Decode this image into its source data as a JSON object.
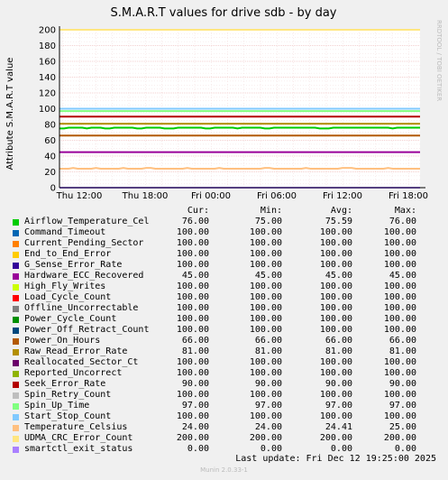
{
  "chart_data": {
    "type": "line",
    "title": "S.M.A.R.T values for drive sdb - by day",
    "ylabel": "Attribute S.M.A.R.T value",
    "watermark": "RRDTOOL / TOBI OETIKER",
    "ylim": [
      0,
      200
    ],
    "yticks": [
      0,
      20,
      40,
      60,
      80,
      100,
      120,
      140,
      160,
      180,
      200
    ],
    "xticks": [
      "Thu 12:00",
      "Thu 18:00",
      "Fri 00:00",
      "Fri 06:00",
      "Fri 12:00",
      "Fri 18:00"
    ],
    "grid": true,
    "series": [
      {
        "name": "Airflow_Temperature_Cel",
        "color": "#00cc00",
        "values": [
          75,
          75,
          76,
          76,
          76,
          76,
          75,
          76,
          76,
          76,
          75,
          75,
          76,
          76,
          76,
          76,
          76,
          75,
          75,
          76,
          76,
          76,
          76,
          75,
          75,
          75,
          76,
          76,
          76,
          76,
          76,
          76,
          75,
          75,
          76,
          76,
          76,
          76,
          76,
          75,
          76,
          76,
          76,
          76,
          76,
          75,
          75,
          76,
          76,
          76,
          76,
          76,
          76,
          76,
          76,
          76,
          76,
          75,
          75,
          75,
          76,
          76,
          76,
          76,
          76,
          76,
          76,
          76,
          76,
          76,
          76,
          76,
          76,
          75,
          76,
          76,
          76,
          76,
          76,
          76
        ]
      },
      {
        "name": "Command_Timeout",
        "color": "#0066b3",
        "values": [
          100,
          100
        ]
      },
      {
        "name": "Current_Pending_Sector",
        "color": "#ff8000",
        "values": [
          100,
          100
        ]
      },
      {
        "name": "End_to_End_Error",
        "color": "#ffcc00",
        "values": [
          100,
          100
        ]
      },
      {
        "name": "G_Sense_Error_Rate",
        "color": "#330099",
        "values": [
          100,
          100
        ]
      },
      {
        "name": "Hardware_ECC_Recovered",
        "color": "#990099",
        "values": [
          45,
          45
        ]
      },
      {
        "name": "High_Fly_Writes",
        "color": "#ccff00",
        "values": [
          100,
          100
        ]
      },
      {
        "name": "Load_Cycle_Count",
        "color": "#ff0000",
        "values": [
          100,
          100
        ]
      },
      {
        "name": "Offline_Uncorrectable",
        "color": "#808080",
        "values": [
          100,
          100
        ]
      },
      {
        "name": "Power_Cycle_Count",
        "color": "#008f00",
        "values": [
          100,
          100
        ]
      },
      {
        "name": "Power_Off_Retract_Count",
        "color": "#00487d",
        "values": [
          100,
          100
        ]
      },
      {
        "name": "Power_On_Hours",
        "color": "#b35a00",
        "values": [
          66,
          66
        ]
      },
      {
        "name": "Raw_Read_Error_Rate",
        "color": "#b38f00",
        "values": [
          81,
          81
        ]
      },
      {
        "name": "Reallocated_Sector_Ct",
        "color": "#6b006b",
        "values": [
          100,
          100
        ]
      },
      {
        "name": "Reported_Uncorrect",
        "color": "#8fb300",
        "values": [
          100,
          100
        ]
      },
      {
        "name": "Seek_Error_Rate",
        "color": "#b30000",
        "values": [
          90,
          90
        ]
      },
      {
        "name": "Spin_Retry_Count",
        "color": "#bebebe",
        "values": [
          100,
          100
        ]
      },
      {
        "name": "Spin_Up_Time",
        "color": "#80ff80",
        "values": [
          97,
          97
        ]
      },
      {
        "name": "Start_Stop_Count",
        "color": "#80c9ff",
        "values": [
          100,
          100
        ]
      },
      {
        "name": "Temperature_Celsius",
        "color": "#ffc080",
        "values": [
          24,
          24,
          24,
          25,
          24,
          24,
          24,
          24,
          25,
          24,
          24,
          24,
          24,
          24,
          25,
          24,
          24,
          24,
          24,
          25,
          25,
          24,
          24,
          24,
          24,
          24,
          24,
          24,
          25,
          24,
          24,
          24,
          24,
          24,
          24,
          25,
          24,
          24,
          24,
          24,
          24,
          24,
          24,
          24,
          24,
          25,
          25,
          24,
          24,
          24,
          24,
          24,
          24,
          24,
          25,
          24,
          24,
          24,
          24,
          24,
          24,
          24,
          25,
          25,
          25,
          24,
          24,
          24,
          24,
          24,
          24,
          24,
          25,
          24,
          24,
          24,
          24,
          24,
          24,
          24
        ]
      },
      {
        "name": "UDMA_CRC_Error_Count",
        "color": "#ffe680",
        "values": [
          200,
          200
        ]
      },
      {
        "name": "smartctl_exit_status",
        "color": "#aa80ff",
        "values": [
          0,
          0
        ]
      }
    ]
  },
  "legend": {
    "headers": {
      "cur": "Cur:",
      "min": "Min:",
      "avg": "Avg:",
      "max": "Max:"
    },
    "rows": [
      {
        "name": "Airflow_Temperature_Cel",
        "cur": "76.00",
        "min": "75.00",
        "avg": "75.59",
        "max": "76.00"
      },
      {
        "name": "Command_Timeout",
        "cur": "100.00",
        "min": "100.00",
        "avg": "100.00",
        "max": "100.00"
      },
      {
        "name": "Current_Pending_Sector",
        "cur": "100.00",
        "min": "100.00",
        "avg": "100.00",
        "max": "100.00"
      },
      {
        "name": "End_to_End_Error",
        "cur": "100.00",
        "min": "100.00",
        "avg": "100.00",
        "max": "100.00"
      },
      {
        "name": "G_Sense_Error_Rate",
        "cur": "100.00",
        "min": "100.00",
        "avg": "100.00",
        "max": "100.00"
      },
      {
        "name": "Hardware_ECC_Recovered",
        "cur": "45.00",
        "min": "45.00",
        "avg": "45.00",
        "max": "45.00"
      },
      {
        "name": "High_Fly_Writes",
        "cur": "100.00",
        "min": "100.00",
        "avg": "100.00",
        "max": "100.00"
      },
      {
        "name": "Load_Cycle_Count",
        "cur": "100.00",
        "min": "100.00",
        "avg": "100.00",
        "max": "100.00"
      },
      {
        "name": "Offline_Uncorrectable",
        "cur": "100.00",
        "min": "100.00",
        "avg": "100.00",
        "max": "100.00"
      },
      {
        "name": "Power_Cycle_Count",
        "cur": "100.00",
        "min": "100.00",
        "avg": "100.00",
        "max": "100.00"
      },
      {
        "name": "Power_Off_Retract_Count",
        "cur": "100.00",
        "min": "100.00",
        "avg": "100.00",
        "max": "100.00"
      },
      {
        "name": "Power_On_Hours",
        "cur": "66.00",
        "min": "66.00",
        "avg": "66.00",
        "max": "66.00"
      },
      {
        "name": "Raw_Read_Error_Rate",
        "cur": "81.00",
        "min": "81.00",
        "avg": "81.00",
        "max": "81.00"
      },
      {
        "name": "Reallocated_Sector_Ct",
        "cur": "100.00",
        "min": "100.00",
        "avg": "100.00",
        "max": "100.00"
      },
      {
        "name": "Reported_Uncorrect",
        "cur": "100.00",
        "min": "100.00",
        "avg": "100.00",
        "max": "100.00"
      },
      {
        "name": "Seek_Error_Rate",
        "cur": "90.00",
        "min": "90.00",
        "avg": "90.00",
        "max": "90.00"
      },
      {
        "name": "Spin_Retry_Count",
        "cur": "100.00",
        "min": "100.00",
        "avg": "100.00",
        "max": "100.00"
      },
      {
        "name": "Spin_Up_Time",
        "cur": "97.00",
        "min": "97.00",
        "avg": "97.00",
        "max": "97.00"
      },
      {
        "name": "Start_Stop_Count",
        "cur": "100.00",
        "min": "100.00",
        "avg": "100.00",
        "max": "100.00"
      },
      {
        "name": "Temperature_Celsius",
        "cur": "24.00",
        "min": "24.00",
        "avg": "24.41",
        "max": "25.00"
      },
      {
        "name": "UDMA_CRC_Error_Count",
        "cur": "200.00",
        "min": "200.00",
        "avg": "200.00",
        "max": "200.00"
      },
      {
        "name": "smartctl_exit_status",
        "cur": "0.00",
        "min": "0.00",
        "avg": "0.00",
        "max": "0.00"
      }
    ]
  },
  "footer": {
    "last_update": "Last update:  Fri Dec 12 19:25:00 2025",
    "munin": "Munin 2.0.33-1"
  }
}
